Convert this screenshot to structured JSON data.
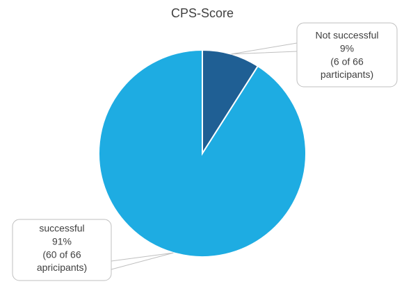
{
  "chart_data": {
    "type": "pie",
    "title": "CPS-Score",
    "categories": [
      "Not successful",
      "successful"
    ],
    "values": [
      9,
      91
    ],
    "value_labels": [
      "9%",
      "91%"
    ],
    "details": [
      [
        "(6 of 66",
        "participants)"
      ],
      [
        "(60 of 66",
        "apricipants)"
      ]
    ],
    "colors": [
      "#1f5f94",
      "#1eace2"
    ]
  }
}
